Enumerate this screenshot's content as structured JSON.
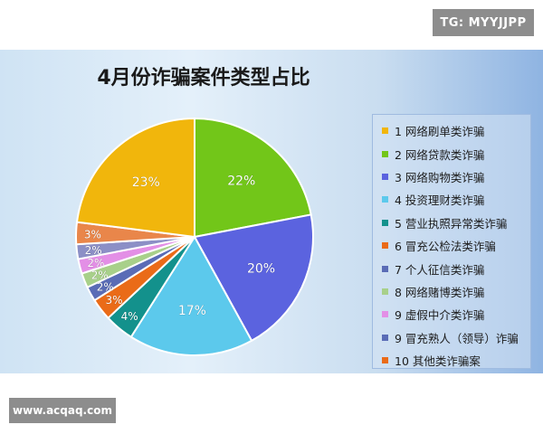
{
  "watermarks": {
    "top": "TG: MYYJJPP",
    "bottom": "www.acqaq.com"
  },
  "chart_data": {
    "type": "pie",
    "title": "4月份诈骗案件类型占比",
    "slices": [
      {
        "name": "1 网络刷单类诈骗",
        "value": 22,
        "label": "22%",
        "color": "#72c619"
      },
      {
        "name": "2 网络贷款类诈骗",
        "value": 20,
        "label": "20%",
        "color": "#5b63df"
      },
      {
        "name": "3 网络购物类诈骗",
        "value": 17,
        "label": "17%",
        "color": "#5cc9ec"
      },
      {
        "name": "4 投资理财类诈骗",
        "value": 4,
        "label": "4%",
        "color": "#13918c"
      },
      {
        "name": "5 营业执照异常类诈骗",
        "value": 3,
        "label": "3%",
        "color": "#ea6b18"
      },
      {
        "name": "6 冒充公检法类诈骗",
        "value": 2,
        "label": "2%",
        "color": "#5a6cb6"
      },
      {
        "name": "7 个人征信类诈骗",
        "value": 2,
        "label": "2%",
        "color": "#a8d08a"
      },
      {
        "name": "8 网络赌博类诈骗",
        "value": 2,
        "label": "2%",
        "color": "#e38fe6"
      },
      {
        "name": "9 虚假中介类诈骗",
        "value": 2,
        "label": "2%",
        "color": "#8c8fc6"
      },
      {
        "name": "9 冒充熟人（领导）诈骗",
        "value": 3,
        "label": "3%",
        "color": "#e9864a"
      },
      {
        "name": "10 其他类诈骗案",
        "value": 23,
        "label": "23%",
        "color": "#f1b60c"
      }
    ],
    "legend_colors": [
      "#f1b60c",
      "#72c619",
      "#5b63df",
      "#5cc9ec",
      "#13918c",
      "#ea6b18",
      "#5a6cb6",
      "#a8d08a",
      "#e38fe6",
      "#5a6cb6",
      "#ea6b18"
    ],
    "legend_position": "right"
  }
}
